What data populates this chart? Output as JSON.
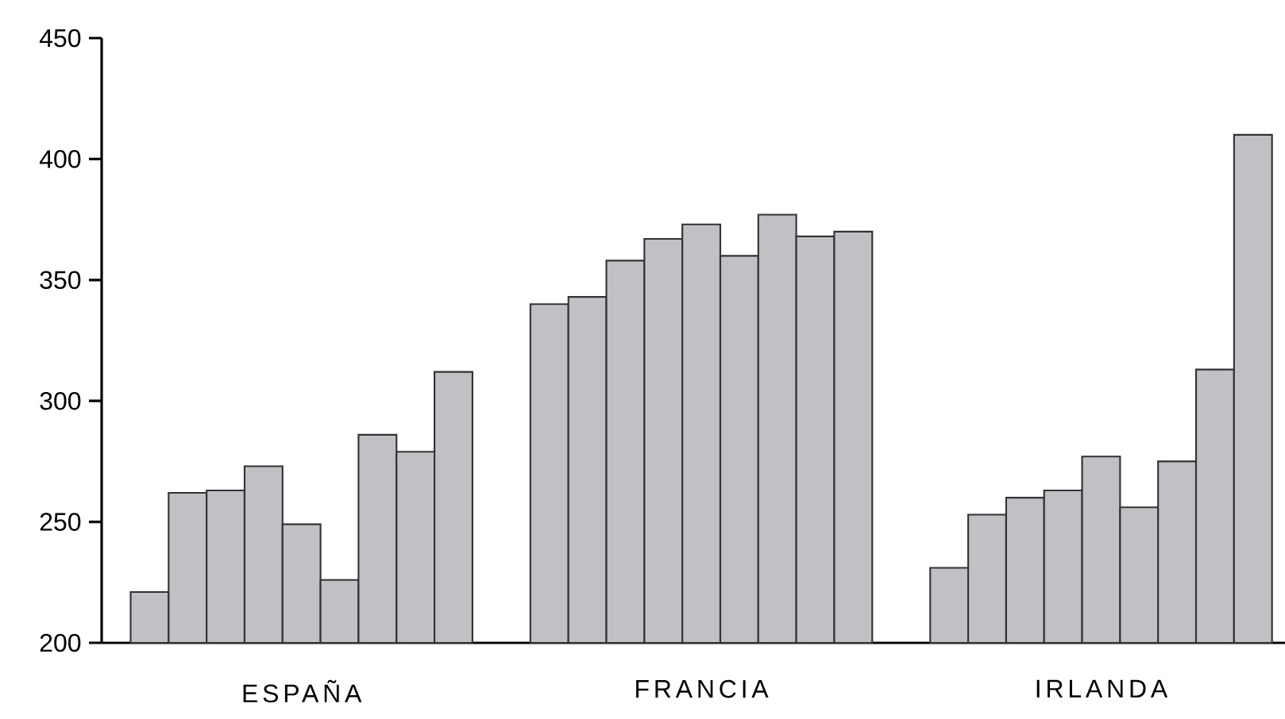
{
  "chart_data": {
    "type": "bar",
    "categories": [
      "ESPAÑA",
      "FRANCIA",
      "IRLANDA"
    ],
    "series": [
      {
        "color": "#c0c1c4",
        "values": [
          221,
          340,
          231
        ]
      },
      {
        "color": "#c0c1c4",
        "values": [
          262,
          343,
          253
        ]
      },
      {
        "color": "#c0c1c4",
        "values": [
          263,
          358,
          260
        ]
      },
      {
        "color": "#c0c1c4",
        "values": [
          273,
          367,
          263
        ]
      },
      {
        "color": "#c0c1c4",
        "values": [
          249,
          373,
          277
        ]
      },
      {
        "color": "#c0c1c4",
        "values": [
          226,
          360,
          256
        ]
      },
      {
        "color": "#c0c1c4",
        "values": [
          286,
          377,
          275
        ]
      },
      {
        "color": "#c0c1c4",
        "values": [
          279,
          368,
          313
        ]
      },
      {
        "color": "#c0c1c4",
        "values": [
          312,
          370,
          410
        ]
      }
    ],
    "ylim": [
      200,
      450
    ],
    "yticks": [
      200,
      250,
      300,
      350,
      400,
      450
    ]
  }
}
